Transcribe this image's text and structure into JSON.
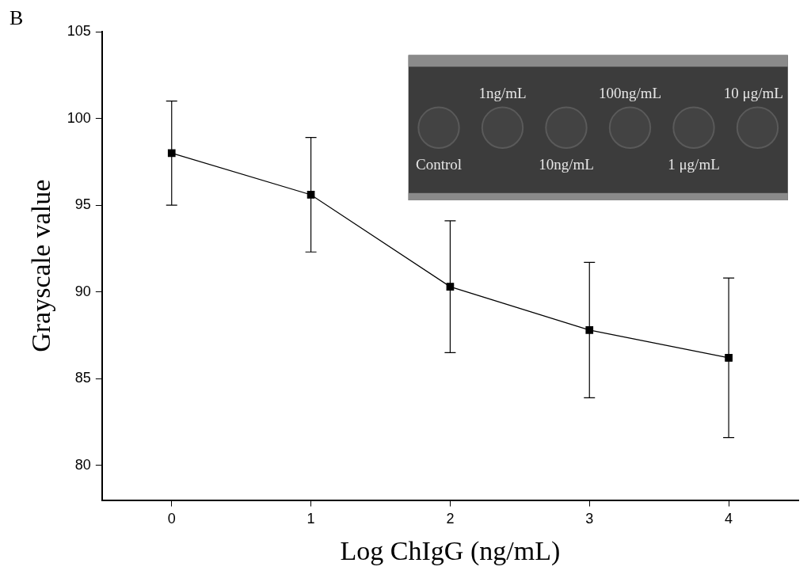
{
  "chart_data": {
    "type": "line",
    "panel": "B",
    "xlabel": "Log ChIgG (ng/mL)",
    "ylabel": "Grayscale value",
    "x": [
      0,
      1,
      2,
      3,
      4
    ],
    "values": [
      98,
      95.6,
      90.3,
      87.8,
      86.2
    ],
    "errors": [
      3,
      3.3,
      3.8,
      3.9,
      4.6
    ],
    "color": "#000000",
    "marker": "square",
    "line_style": "solid",
    "xlim": [
      -0.5,
      4.5
    ],
    "xticks": [
      0,
      1,
      2,
      3,
      4
    ],
    "ylim": [
      78,
      105
    ],
    "yticks": [
      80,
      85,
      90,
      95,
      100,
      105
    ],
    "grid": false,
    "inset_labels": {
      "top": [
        "1ng/mL",
        "100ng/mL",
        "10 μg/mL"
      ],
      "bottom": [
        "Control",
        "10ng/mL",
        "1 μg/mL"
      ]
    }
  }
}
